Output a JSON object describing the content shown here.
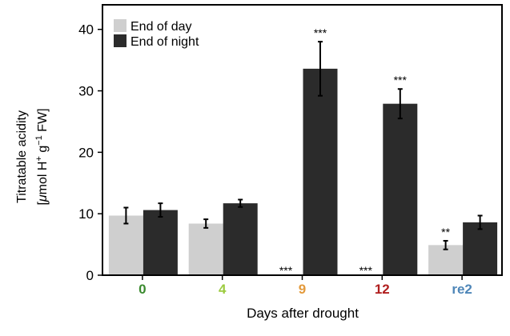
{
  "chart_data": {
    "type": "bar",
    "title": "",
    "xlabel": "Days after drought",
    "ylabel_line1": "Titratable acidity",
    "ylabel_line2_parts": [
      "[",
      "μ",
      "mol H",
      "+",
      " g",
      "−1",
      " FW]"
    ],
    "ylim": [
      0,
      44
    ],
    "yticks": [
      0,
      10,
      20,
      30,
      40
    ],
    "categories": [
      "0",
      "4",
      "9",
      "12",
      "re2"
    ],
    "category_colors": [
      "#3a8a2e",
      "#9ccb3f",
      "#e39a3c",
      "#b01e1e",
      "#4e86b8"
    ],
    "series": [
      {
        "name": "End of day",
        "color": "#cfcfcf",
        "values": [
          9.7,
          8.4,
          0,
          0,
          4.9
        ],
        "errors": [
          1.3,
          0.7,
          0,
          0,
          0.7
        ],
        "significance": [
          "",
          "",
          "***",
          "***",
          "**"
        ]
      },
      {
        "name": "End of night",
        "color": "#2b2b2b",
        "values": [
          10.6,
          11.7,
          33.6,
          27.9,
          8.6
        ],
        "errors": [
          1.1,
          0.6,
          4.4,
          2.4,
          1.1
        ],
        "significance": [
          "",
          "",
          "***",
          "***",
          ""
        ]
      }
    ],
    "legend_position": "top-left",
    "grid": false
  }
}
